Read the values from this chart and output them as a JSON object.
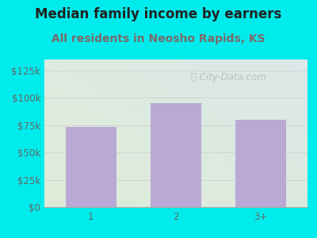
{
  "title": "Median family income by earners",
  "subtitle": "All residents in Neosho Rapids, KS",
  "categories": [
    "1",
    "2",
    "3+"
  ],
  "values": [
    73000,
    95000,
    80000
  ],
  "bar_color": "#b8aad4",
  "background_color": "#00ecec",
  "plot_bg_top_right": "#dce8e8",
  "plot_bg_bottom_left": "#deecd8",
  "title_color": "#222222",
  "subtitle_color": "#7a6a6a",
  "axis_label_color": "#666666",
  "ytick_labels": [
    "$0",
    "$25k",
    "$50k",
    "$75k",
    "$100k",
    "$125k"
  ],
  "ytick_values": [
    0,
    25000,
    50000,
    75000,
    100000,
    125000
  ],
  "ylim": [
    0,
    135000
  ],
  "watermark": "City-Data.com",
  "title_fontsize": 12,
  "subtitle_fontsize": 10,
  "tick_fontsize": 8.5
}
